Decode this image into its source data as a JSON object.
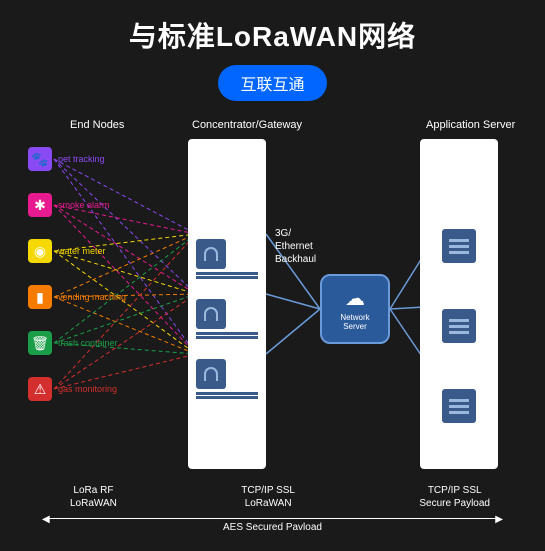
{
  "title": {
    "main": "与标准LoRaWAN网络",
    "pill": "互联互通"
  },
  "headers": {
    "endNodes": "End Nodes",
    "gateway": "Concentrator/Gateway",
    "appServer": "Application Server"
  },
  "endNodes": [
    {
      "label": "pet tracking",
      "color": "#8a4af3",
      "text_color": "#8a4af3",
      "glyph": "🐾"
    },
    {
      "label": "smoke alarm",
      "color": "#e81a8f",
      "text_color": "#e81a8f",
      "glyph": "✱"
    },
    {
      "label": "water meter",
      "color": "#f5d800",
      "text_color": "#f5d800",
      "glyph": "◉"
    },
    {
      "label": "vending maching",
      "color": "#f57c00",
      "text_color": "#f57c00",
      "glyph": "▮"
    },
    {
      "label": "trash container",
      "color": "#1a9e4a",
      "text_color": "#1a9e4a",
      "glyph": "🗑"
    },
    {
      "label": "gas monitoring",
      "color": "#d32f2f",
      "text_color": "#d32f2f",
      "glyph": "⚠"
    }
  ],
  "gateway": {
    "item_positions_y": [
      100,
      160,
      220
    ],
    "bg": "#ffffff"
  },
  "backhaul_label": "3G/\nEthernet\nBackhaul",
  "networkServer": {
    "label": "Network\nServer",
    "bg": "#2a5a9a",
    "border": "#6a9ad8"
  },
  "appServer": {
    "item_positions_y": [
      90,
      170,
      250
    ],
    "bg": "#ffffff"
  },
  "protocols": {
    "col1_line1": "LoRa RF",
    "col1_line2": "LoRaWAN",
    "col2_line1": "TCP/IP SSL",
    "col2_line2": "LoRaWAN",
    "col3_line1": "TCP/IP SSL",
    "col3_line2": "Secure Payload"
  },
  "aes_label": "AES Secured Pavload",
  "line_colors": {
    "node_to_gw_dash": "4,3",
    "gw_to_net": "#6a9ad8",
    "net_to_app": "#6a9ad8"
  }
}
